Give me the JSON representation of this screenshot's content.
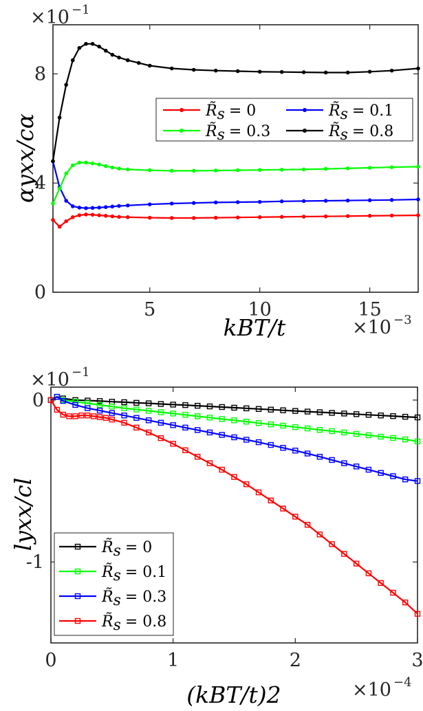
{
  "chart_data": [
    {
      "type": "line",
      "marker": "dot",
      "ylabel": "αyxx/cα",
      "xlabel": "kBT/t",
      "x_multiplier": "×10^-3",
      "y_multiplier": "×10^-1",
      "x_multiplier_base": "×10",
      "x_multiplier_exp": "−3",
      "y_multiplier_base": "×10",
      "y_multiplier_exp": "−1",
      "xlim": [
        0.6,
        17.2
      ],
      "ylim": [
        0,
        9.8
      ],
      "xticks": [
        5,
        10,
        15
      ],
      "xticklabels": [
        "5",
        "10",
        "15"
      ],
      "yticks": [
        0,
        4,
        8
      ],
      "yticklabels": [
        "0",
        "4",
        "8"
      ],
      "legend_position": "top-right",
      "legend_columns": 2,
      "series": [
        {
          "name": "R̃s = 0",
          "legend_symbol": "R̃",
          "legend_sub": "s",
          "legend_value": "= 0",
          "color": "#ff0000",
          "x": [
            0.6,
            0.9,
            1.2,
            1.5,
            1.8,
            2.1,
            2.4,
            2.7,
            3.0,
            3.3,
            3.6,
            4.0,
            5.0,
            6.0,
            7.0,
            8.0,
            9.0,
            10.0,
            11.0,
            12.0,
            13.0,
            14.0,
            15.0,
            16.0,
            17.2
          ],
          "y": [
            2.65,
            2.4,
            2.6,
            2.75,
            2.82,
            2.85,
            2.84,
            2.82,
            2.8,
            2.78,
            2.76,
            2.75,
            2.73,
            2.72,
            2.72,
            2.73,
            2.74,
            2.75,
            2.76,
            2.77,
            2.78,
            2.79,
            2.8,
            2.81,
            2.82
          ]
        },
        {
          "name": "R̃s = 0.1",
          "legend_symbol": "R̃",
          "legend_sub": "s",
          "legend_value": "= 0.1",
          "color": "#0000ff",
          "x": [
            0.6,
            0.9,
            1.2,
            1.5,
            1.8,
            2.1,
            2.4,
            2.7,
            3.0,
            3.3,
            3.6,
            4.0,
            5.0,
            6.0,
            7.0,
            8.0,
            9.0,
            10.0,
            11.0,
            12.0,
            13.0,
            14.0,
            15.0,
            16.0,
            17.2
          ],
          "y": [
            4.8,
            3.85,
            3.35,
            3.15,
            3.1,
            3.08,
            3.09,
            3.1,
            3.12,
            3.14,
            3.16,
            3.18,
            3.22,
            3.25,
            3.27,
            3.29,
            3.3,
            3.31,
            3.33,
            3.34,
            3.35,
            3.36,
            3.37,
            3.38,
            3.4
          ]
        },
        {
          "name": "R̃s = 0.3",
          "legend_symbol": "R̃",
          "legend_sub": "s",
          "legend_value": "= 0.3",
          "color": "#00ff00",
          "x": [
            0.6,
            0.9,
            1.2,
            1.5,
            1.8,
            2.1,
            2.4,
            2.7,
            3.0,
            3.3,
            3.6,
            4.0,
            5.0,
            6.0,
            7.0,
            8.0,
            9.0,
            10.0,
            11.0,
            12.0,
            13.0,
            14.0,
            15.0,
            16.0,
            17.2
          ],
          "y": [
            3.25,
            3.8,
            4.35,
            4.65,
            4.75,
            4.75,
            4.72,
            4.68,
            4.62,
            4.57,
            4.53,
            4.5,
            4.47,
            4.45,
            4.45,
            4.46,
            4.47,
            4.48,
            4.49,
            4.5,
            4.52,
            4.54,
            4.56,
            4.58,
            4.6
          ]
        },
        {
          "name": "R̃s = 0.8",
          "legend_symbol": "R̃",
          "legend_sub": "s",
          "legend_value": "= 0.8",
          "color": "#000000",
          "x": [
            0.6,
            0.9,
            1.2,
            1.5,
            1.8,
            2.1,
            2.4,
            2.7,
            3.0,
            3.3,
            3.6,
            4.0,
            4.5,
            5.0,
            6.0,
            7.0,
            8.0,
            9.0,
            10.0,
            11.0,
            12.0,
            13.0,
            14.0,
            15.0,
            16.0,
            17.2
          ],
          "y": [
            4.8,
            6.4,
            7.6,
            8.5,
            8.95,
            9.1,
            9.1,
            9.0,
            8.85,
            8.7,
            8.6,
            8.5,
            8.4,
            8.3,
            8.2,
            8.15,
            8.12,
            8.1,
            8.08,
            8.07,
            8.06,
            8.05,
            8.05,
            8.08,
            8.12,
            8.2
          ]
        }
      ]
    },
    {
      "type": "line",
      "marker": "square",
      "ylabel": "lyxx/cl",
      "xlabel": "(kBT/t)2",
      "x_multiplier": "×10^-4",
      "y_multiplier": "×10^-1",
      "x_multiplier_base": "×10",
      "x_multiplier_exp": "−4",
      "y_multiplier_base": "×10",
      "y_multiplier_exp": "−1",
      "xlim": [
        0,
        3
      ],
      "ylim": [
        -1.5,
        0.08
      ],
      "xticks": [
        0,
        1,
        2,
        3
      ],
      "xticklabels": [
        "0",
        "1",
        "2",
        "3"
      ],
      "yticks": [
        -1,
        0
      ],
      "yticklabels": [
        "-1",
        "0"
      ],
      "legend_position": "bottom-left",
      "legend_columns": 1,
      "series": [
        {
          "name": "R̃s = 0",
          "legend_symbol": "R̃",
          "legend_sub": "s",
          "legend_value": "= 0",
          "color": "#000000",
          "x": [
            0,
            0.05,
            0.1,
            0.2,
            0.3,
            0.4,
            0.5,
            0.6,
            0.7,
            0.8,
            0.9,
            1.0,
            1.1,
            1.2,
            1.3,
            1.4,
            1.5,
            1.6,
            1.7,
            1.8,
            1.9,
            2.0,
            2.1,
            2.2,
            2.3,
            2.4,
            2.5,
            2.6,
            2.7,
            2.8,
            2.9,
            3.0
          ],
          "y": [
            0.0,
            0.02,
            0.01,
            0.0,
            -0.003,
            -0.006,
            -0.01,
            -0.013,
            -0.017,
            -0.02,
            -0.024,
            -0.028,
            -0.031,
            -0.035,
            -0.039,
            -0.043,
            -0.047,
            -0.051,
            -0.055,
            -0.059,
            -0.063,
            -0.067,
            -0.071,
            -0.075,
            -0.079,
            -0.083,
            -0.087,
            -0.091,
            -0.095,
            -0.099,
            -0.103,
            -0.107
          ]
        },
        {
          "name": "R̃s = 0.1",
          "legend_symbol": "R̃",
          "legend_sub": "s",
          "legend_value": "= 0.1",
          "color": "#00ff00",
          "x": [
            0,
            0.05,
            0.1,
            0.2,
            0.3,
            0.4,
            0.5,
            0.6,
            0.7,
            0.8,
            0.9,
            1.0,
            1.1,
            1.2,
            1.3,
            1.4,
            1.5,
            1.6,
            1.7,
            1.8,
            1.9,
            2.0,
            2.1,
            2.2,
            2.3,
            2.4,
            2.5,
            2.6,
            2.7,
            2.8,
            2.9,
            3.0
          ],
          "y": [
            0.0,
            0.02,
            0.0,
            -0.01,
            -0.02,
            -0.03,
            -0.04,
            -0.05,
            -0.058,
            -0.066,
            -0.075,
            -0.083,
            -0.091,
            -0.1,
            -0.108,
            -0.117,
            -0.125,
            -0.133,
            -0.142,
            -0.15,
            -0.158,
            -0.167,
            -0.175,
            -0.184,
            -0.192,
            -0.2,
            -0.209,
            -0.217,
            -0.226,
            -0.234,
            -0.243,
            -0.255
          ]
        },
        {
          "name": "R̃s = 0.3",
          "legend_symbol": "R̃",
          "legend_sub": "s",
          "legend_value": "= 0.3",
          "color": "#0000ff",
          "x": [
            0,
            0.05,
            0.1,
            0.2,
            0.3,
            0.4,
            0.5,
            0.6,
            0.7,
            0.8,
            0.9,
            1.0,
            1.1,
            1.2,
            1.3,
            1.4,
            1.5,
            1.6,
            1.7,
            1.8,
            1.9,
            2.0,
            2.1,
            2.2,
            2.3,
            2.4,
            2.5,
            2.6,
            2.7,
            2.8,
            2.9,
            3.0
          ],
          "y": [
            0.0,
            0.02,
            -0.005,
            -0.03,
            -0.05,
            -0.065,
            -0.08,
            -0.095,
            -0.11,
            -0.125,
            -0.14,
            -0.155,
            -0.17,
            -0.185,
            -0.2,
            -0.215,
            -0.23,
            -0.245,
            -0.26,
            -0.277,
            -0.295,
            -0.312,
            -0.33,
            -0.35,
            -0.37,
            -0.39,
            -0.41,
            -0.43,
            -0.45,
            -0.47,
            -0.49,
            -0.5
          ]
        },
        {
          "name": "R̃s = 0.8",
          "legend_symbol": "R̃",
          "legend_sub": "s",
          "legend_value": "= 0.8",
          "color": "#ff0000",
          "x": [
            0,
            0.05,
            0.1,
            0.15,
            0.2,
            0.25,
            0.3,
            0.35,
            0.4,
            0.45,
            0.5,
            0.6,
            0.7,
            0.8,
            0.9,
            1.0,
            1.1,
            1.2,
            1.3,
            1.4,
            1.5,
            1.6,
            1.7,
            1.8,
            1.9,
            2.0,
            2.1,
            2.2,
            2.3,
            2.4,
            2.5,
            2.6,
            2.7,
            2.8,
            2.9,
            3.0
          ],
          "y": [
            0.0,
            -0.06,
            -0.09,
            -0.1,
            -0.1,
            -0.095,
            -0.095,
            -0.1,
            -0.105,
            -0.11,
            -0.12,
            -0.14,
            -0.17,
            -0.2,
            -0.235,
            -0.27,
            -0.31,
            -0.35,
            -0.39,
            -0.43,
            -0.475,
            -0.52,
            -0.57,
            -0.62,
            -0.67,
            -0.72,
            -0.77,
            -0.83,
            -0.89,
            -0.95,
            -1.01,
            -1.07,
            -1.13,
            -1.19,
            -1.25,
            -1.32
          ]
        }
      ]
    }
  ]
}
